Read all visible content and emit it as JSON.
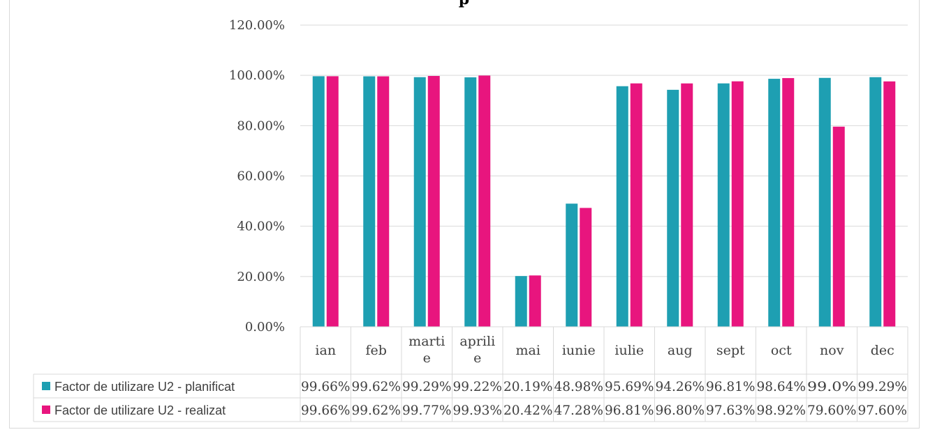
{
  "chart_data": {
    "type": "bar",
    "title": "p",
    "categories": [
      [
        "ian"
      ],
      [
        "feb"
      ],
      [
        "marti",
        "e"
      ],
      [
        "aprili",
        "e"
      ],
      [
        "mai"
      ],
      [
        "iunie"
      ],
      [
        "iulie"
      ],
      [
        "aug"
      ],
      [
        "sept"
      ],
      [
        "oct"
      ],
      [
        "nov"
      ],
      [
        "dec"
      ]
    ],
    "y_ticks": [
      "0.00%",
      "20.00%",
      "40.00%",
      "60.00%",
      "80.00%",
      "100.00%",
      "120.00%"
    ],
    "ylim": [
      0,
      120
    ],
    "grid": true,
    "legend_placement": "data-table-left",
    "series": [
      {
        "name": "Factor de utilizare U2 - planificat",
        "color": "#1e9fb2",
        "values": [
          99.66,
          99.62,
          99.29,
          99.22,
          20.19,
          48.98,
          95.69,
          94.26,
          96.81,
          98.64,
          99.0,
          99.29
        ],
        "labels": [
          "99.66%",
          "99.62%",
          "99.29%",
          "99.22%",
          "20.19%",
          "48.98%",
          "95.69%",
          "94.26%",
          "96.81%",
          "98.64%",
          "99.0%",
          "99.29%"
        ]
      },
      {
        "name": "Factor de utilizare U2 - realizat",
        "color": "#e8157e",
        "values": [
          99.66,
          99.62,
          99.77,
          99.93,
          20.42,
          47.28,
          96.81,
          96.8,
          97.63,
          98.92,
          79.6,
          97.6
        ],
        "labels": [
          "99.66%",
          "99.62%",
          "99.77%",
          "99.93%",
          "20.42%",
          "47.28%",
          "96.81%",
          "96.80%",
          "97.63%",
          "98.92%",
          "79.60%",
          "97.60%"
        ]
      }
    ]
  }
}
